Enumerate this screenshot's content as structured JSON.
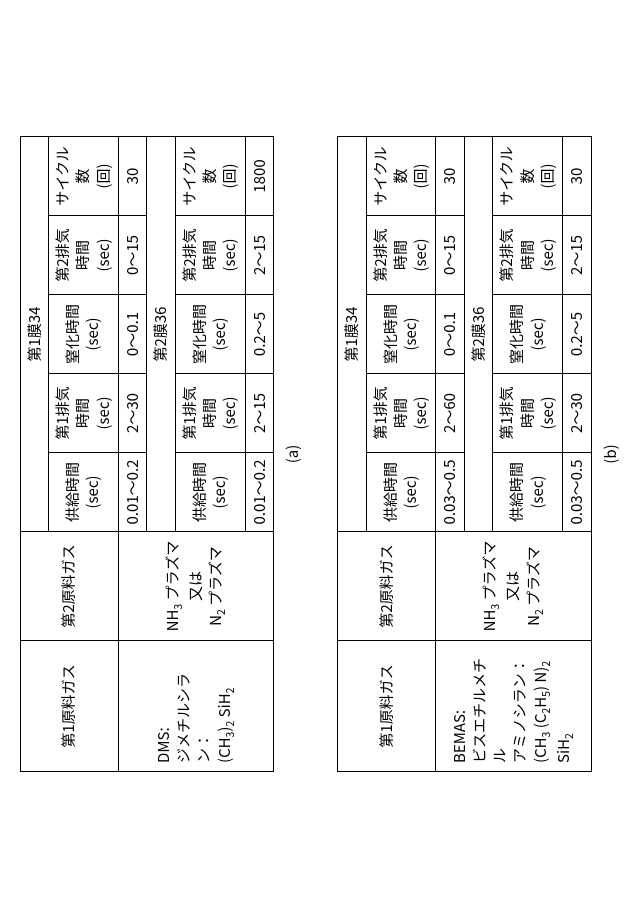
{
  "tables": [
    {
      "caption": "(a)",
      "headers": {
        "gas1": "第1原料ガス",
        "gas2": "第2原料ガス",
        "film1": "第1膜34",
        "film2": "第2膜36",
        "supply": "供給時間\n(sec)",
        "ex1": "第1排気時間\n(sec)",
        "nit": "窒化時間\n(sec)",
        "ex2": "第2排気時間\n(sec)",
        "cycles": "サイクル数\n(回)"
      },
      "gas1_html": "DMS:<br>ジメチルシラン：<br>(CH<sub>3</sub>)<sub>2</sub> SiH<sub>2</sub>",
      "gas2_html": "NH<sub>3</sub> プラズマ<br>又は<br>N<sub>2</sub> プラズマ",
      "row1": {
        "supply": "0.01～0.2",
        "ex1": "2～30",
        "nit": "0～0.1",
        "ex2": "0～15",
        "cycles": "30"
      },
      "row2": {
        "supply": "0.01～0.2",
        "ex1": "2～15",
        "nit": "0.2～5",
        "ex2": "2～15",
        "cycles": "1800"
      }
    },
    {
      "caption": "(b)",
      "headers": {
        "gas1": "第1原料ガス",
        "gas2": "第2原料ガス",
        "film1": "第1膜34",
        "film2": "第2膜36",
        "supply": "供給時間\n(sec)",
        "ex1": "第1排気時間\n(sec)",
        "nit": "窒化時間\n(sec)",
        "ex2": "第2排気時間\n(sec)",
        "cycles": "サイクル数\n(回)"
      },
      "gas1_html": "BEMAS:<br>ビスエチルメチル<br>アミノシラン：<br>(CH<sub>3</sub> (C<sub>2</sub>H<sub>5</sub>) N)<sub>2</sub> SiH<sub>2</sub>",
      "gas2_html": "NH<sub>3</sub> プラズマ<br>又は<br>N<sub>2</sub> プラズマ",
      "row1": {
        "supply": "0.03～0.5",
        "ex1": "2～60",
        "nit": "0～0.1",
        "ex2": "0～15",
        "cycles": "30"
      },
      "row2": {
        "supply": "0.03～0.5",
        "ex1": "2～30",
        "nit": "0.2～5",
        "ex2": "2～15",
        "cycles": "30"
      }
    }
  ]
}
